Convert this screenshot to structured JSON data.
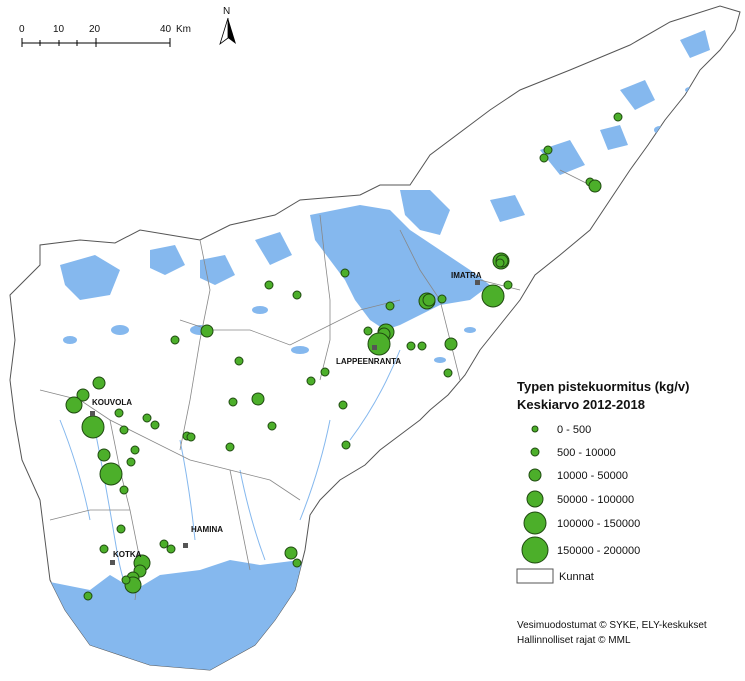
{
  "scale_bar": {
    "ticks": [
      "0",
      "10",
      "20",
      "40"
    ],
    "unit": "Km"
  },
  "north_label": "N",
  "cities": [
    "KOUVOLA",
    "LAPPEENRANTA",
    "IMATRA",
    "HAMINA",
    "KOTKA"
  ],
  "legend": {
    "title_line1": "Typen pistekuormitus (kg/v)",
    "title_line2": "Keskiarvo 2012-2018",
    "classes": [
      {
        "label": "0 - 500"
      },
      {
        "label": "500 - 10000"
      },
      {
        "label": "10000 - 50000"
      },
      {
        "label": "50000 - 100000"
      },
      {
        "label": "100000 - 150000"
      },
      {
        "label": "150000 - 200000"
      }
    ],
    "municipalities_label": "Kunnat"
  },
  "credits": {
    "line1": "Vesimuodostumat © SYKE, ELY-keskukset",
    "line2": "Hallinnolliset rajat © MML"
  },
  "colors": {
    "water": "#85b8ee",
    "point_fill": "#4caf2a",
    "point_stroke": "#1f4a10",
    "boundary": "#888888"
  }
}
